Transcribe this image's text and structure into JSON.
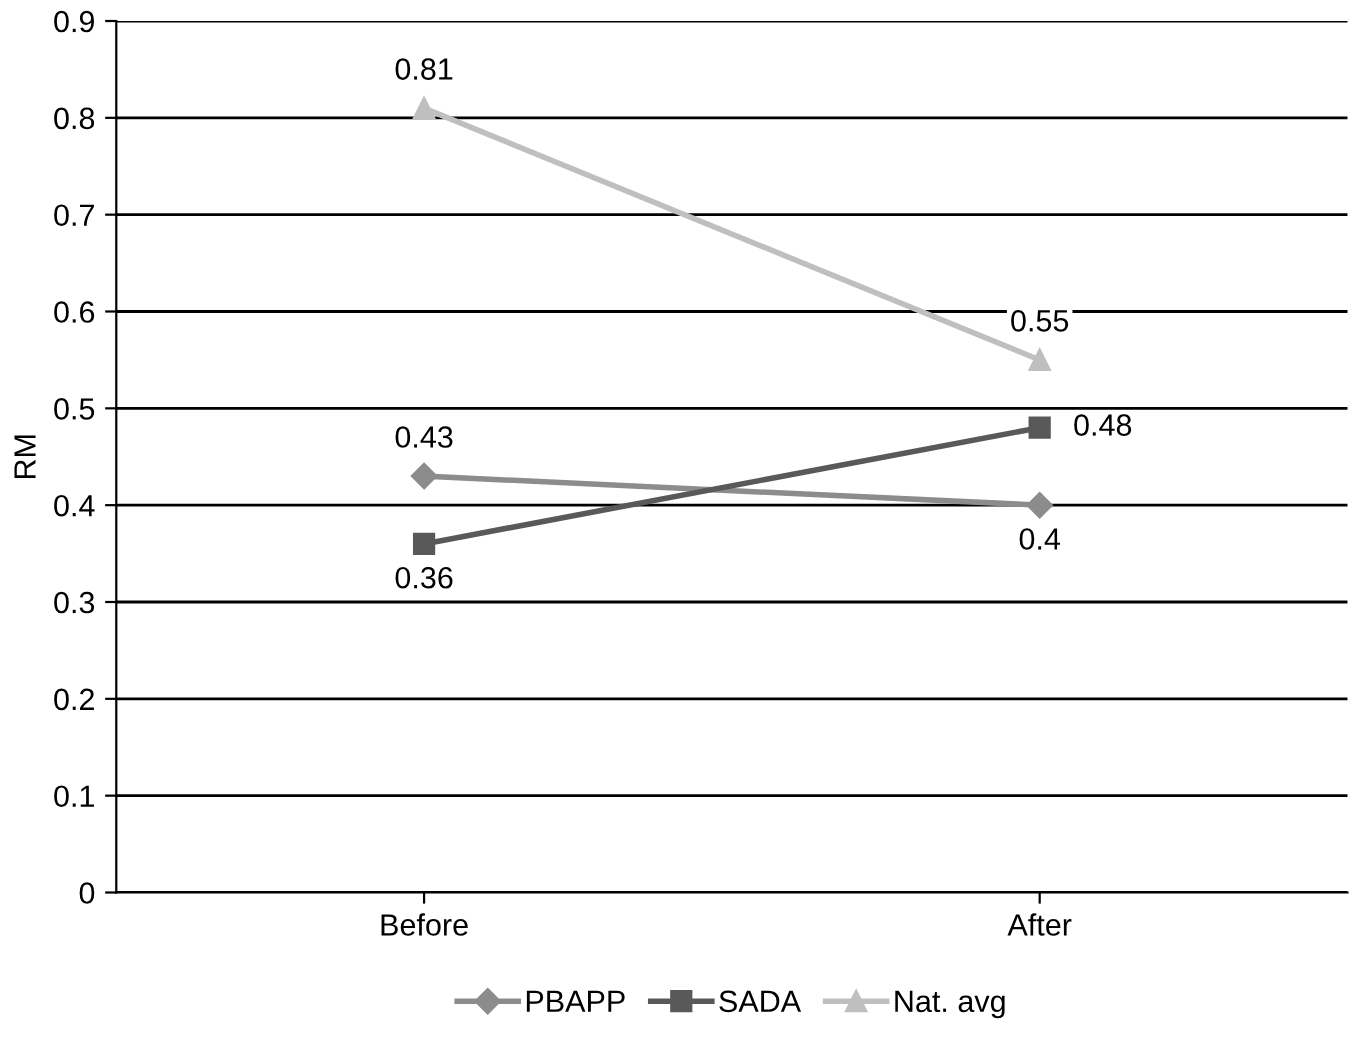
{
  "chart_data": {
    "type": "line",
    "ylabel": "RM",
    "categories": [
      "Before",
      "After"
    ],
    "series": [
      {
        "name": "PBAPP",
        "color": "#8c8c8c",
        "values": [
          0.43,
          0.4
        ],
        "marker": "diamond"
      },
      {
        "name": "SADA",
        "color": "#595959",
        "values": [
          0.36,
          0.48
        ],
        "marker": "square"
      },
      {
        "name": "Nat. avg",
        "color": "#bfbfbf",
        "values": [
          0.81,
          0.55
        ],
        "marker": "triangle"
      }
    ],
    "ylim": [
      0,
      0.9
    ],
    "yticks": [
      0,
      0.1,
      0.2,
      0.3,
      0.4,
      0.5,
      0.6,
      0.7,
      0.8,
      0.9
    ],
    "grid": "y",
    "legend": "bottom",
    "data_labels": true,
    "line_style": "solid"
  }
}
